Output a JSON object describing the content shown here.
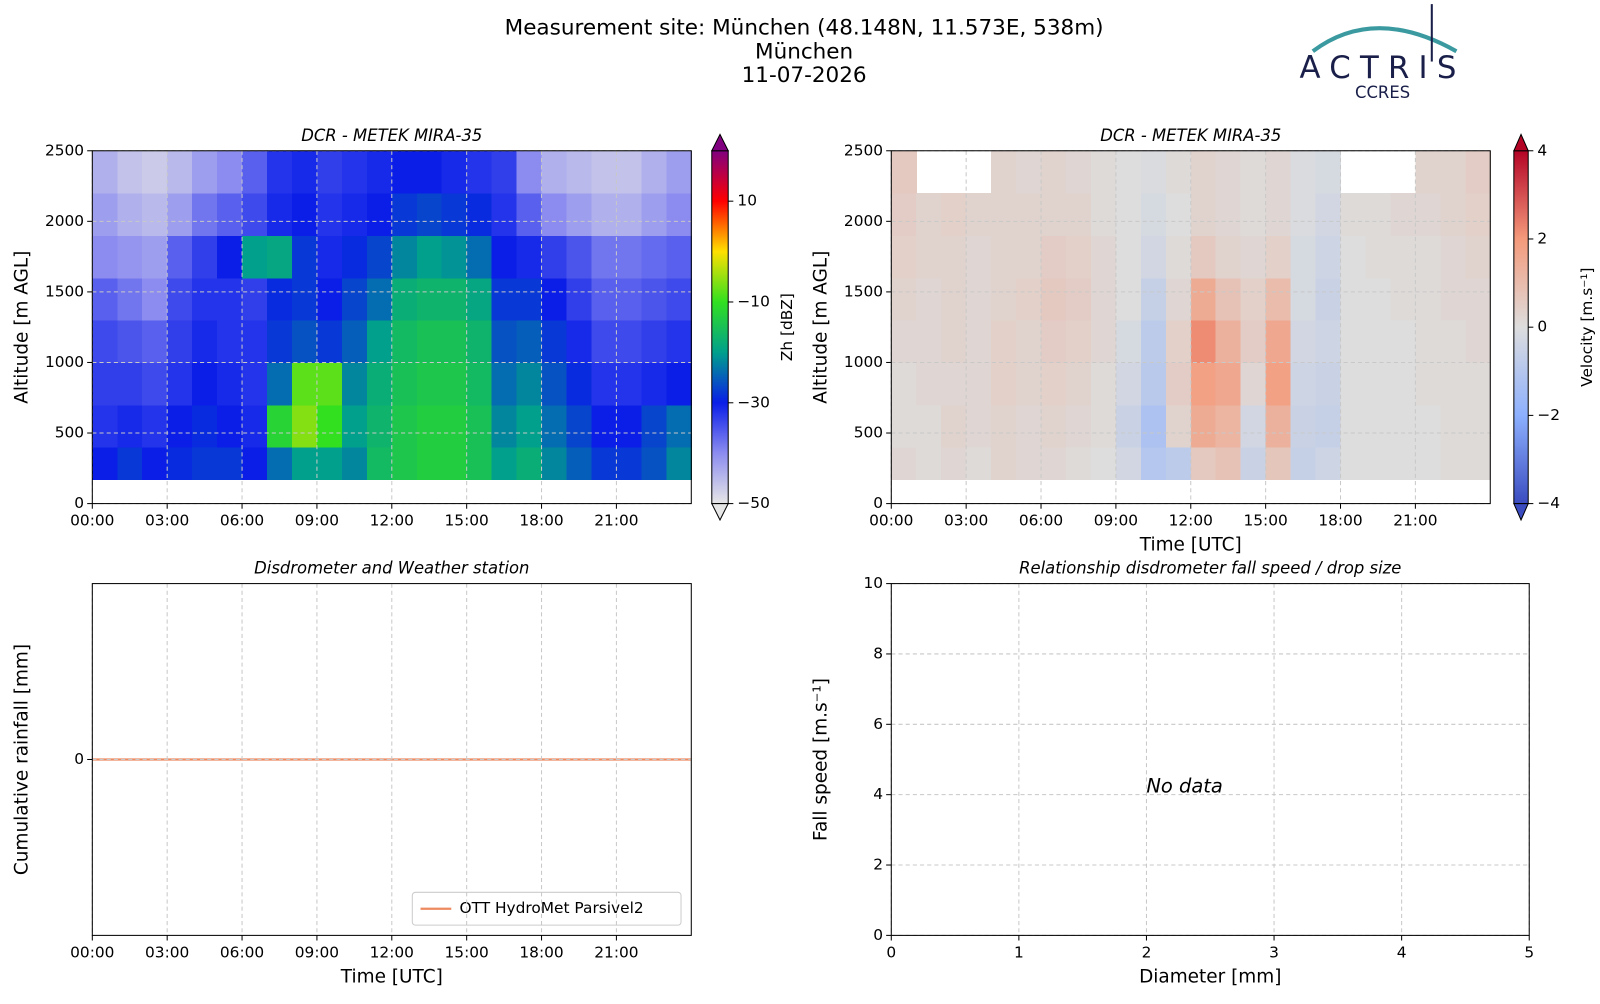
{
  "header": {
    "lines": [
      "Measurement site: München (48.148N, 11.573E, 538m)",
      "München",
      "11-07-2026"
    ]
  },
  "logo": {
    "name": "ACTRIS",
    "subtitle": "CCRES"
  },
  "chart_data": [
    {
      "type": "heatmap",
      "title": "DCR - METEK MIRA-35",
      "ylabel": "Altitude [m AGL]",
      "zlabel": "Zh [dBZ]",
      "x_edges": [
        0,
        1,
        2,
        3,
        4,
        5,
        6,
        7,
        8,
        9,
        10,
        11,
        12,
        13,
        14,
        15,
        16,
        17,
        18,
        19,
        20,
        21,
        22,
        23,
        24
      ],
      "y_edges": [
        170,
        400,
        700,
        1000,
        1300,
        1600,
        1900,
        2200,
        2500
      ],
      "z": [
        [
          -30,
          -28,
          -30,
          -29,
          -28,
          -28,
          -30,
          -24,
          -20,
          -20,
          -22,
          -16,
          -14,
          -13,
          -13,
          -15,
          -20,
          -18,
          -22,
          -25,
          -28,
          -28,
          -26,
          -22
        ],
        [
          -32,
          -31,
          -32,
          -30,
          -29,
          -30,
          -31,
          -12,
          -6,
          -10,
          -20,
          -17,
          -14,
          -13,
          -13,
          -15,
          -22,
          -20,
          -24,
          -27,
          -30,
          -30,
          -27,
          -24
        ],
        [
          -33,
          -33,
          -34,
          -32,
          -30,
          -31,
          -32,
          -24,
          -8,
          -8,
          -22,
          -18,
          -15,
          -14,
          -14,
          -16,
          -24,
          -22,
          -26,
          -29,
          -32,
          -32,
          -31,
          -30
        ],
        [
          -34,
          -35,
          -36,
          -33,
          -31,
          -32,
          -32,
          -28,
          -26,
          -28,
          -25,
          -20,
          -16,
          -15,
          -15,
          -17,
          -26,
          -25,
          -28,
          -31,
          -34,
          -34,
          -33,
          -32
        ],
        [
          -36,
          -38,
          -40,
          -34,
          -32,
          -32,
          -33,
          -29,
          -28,
          -30,
          -27,
          -24,
          -18,
          -17,
          -17,
          -19,
          -28,
          -28,
          -30,
          -33,
          -36,
          -36,
          -35,
          -34
        ],
        [
          -40,
          -41,
          -42,
          -36,
          -33,
          -30,
          -20,
          -19,
          -28,
          -31,
          -29,
          -27,
          -22,
          -20,
          -21,
          -24,
          -30,
          -31,
          -33,
          -35,
          -38,
          -38,
          -37,
          -36
        ],
        [
          -42,
          -44,
          -45,
          -42,
          -38,
          -36,
          -34,
          -31,
          -30,
          -32,
          -31,
          -30,
          -28,
          -27,
          -28,
          -29,
          -32,
          -36,
          -40,
          -42,
          -44,
          -44,
          -42,
          -40
        ],
        [
          -44,
          -46,
          -47,
          -45,
          -42,
          -40,
          -36,
          -32,
          -31,
          -33,
          -32,
          -31,
          -30,
          -30,
          -31,
          -32,
          -33,
          -40,
          -44,
          -45,
          -46,
          -46,
          -44,
          -42
        ]
      ],
      "colors": [
        "#e6e6e6",
        "#8c8cf0",
        "#0a1ee8",
        "#00a08c",
        "#32e020",
        "#ffe000",
        "#ff0000",
        "#800080"
      ],
      "zlim": [
        -50,
        20
      ],
      "zticks": [
        {
          "value": -50,
          "label": "−50"
        },
        {
          "value": -30,
          "label": "−30"
        },
        {
          "value": -10,
          "label": "−10"
        },
        10
      ],
      "extend": "both",
      "xlim": [
        0,
        24
      ],
      "xticks": [
        {
          "value": 0,
          "label": "00:00"
        },
        {
          "value": 3,
          "label": "03:00"
        },
        {
          "value": 6,
          "label": "06:00"
        },
        {
          "value": 9,
          "label": "09:00"
        },
        {
          "value": 12,
          "label": "12:00"
        },
        {
          "value": 15,
          "label": "15:00"
        },
        {
          "value": 18,
          "label": "18:00"
        },
        {
          "value": 21,
          "label": "21:00"
        }
      ],
      "ylim": [
        0,
        2500
      ],
      "yticks": [
        0,
        500,
        1000,
        1500,
        2000,
        2500
      ],
      "grid": true
    },
    {
      "type": "heatmap",
      "title": "DCR - METEK MIRA-35",
      "xlabel": "Time [UTC]",
      "ylabel": "Altitude [m AGL]",
      "zlabel": "Velocity [m.s⁻¹]",
      "x_edges": [
        0,
        1,
        2,
        3,
        4,
        5,
        6,
        7,
        8,
        9,
        10,
        11,
        12,
        13,
        14,
        15,
        16,
        17,
        18,
        19,
        20,
        21,
        22,
        23,
        24
      ],
      "y_edges": [
        170,
        400,
        700,
        1000,
        1300,
        1600,
        1900,
        2200,
        2500
      ],
      "z": [
        [
          0.2,
          0.1,
          0.2,
          0.1,
          0.3,
          0.2,
          0.2,
          0.1,
          0,
          -0.3,
          -1,
          -0.8,
          0.6,
          0.8,
          -0.5,
          0.7,
          -0.6,
          -0.4,
          0,
          0,
          0,
          0,
          0.1,
          0.1
        ],
        [
          0.1,
          0.1,
          0.3,
          0.2,
          0.3,
          0.2,
          0.3,
          0.2,
          0.1,
          -0.5,
          -1.2,
          0.3,
          1.5,
          1.2,
          -0.3,
          1.3,
          -0.5,
          -0.6,
          0,
          0,
          0,
          0,
          0.1,
          0.1
        ],
        [
          0.1,
          0.2,
          0.2,
          0.2,
          0.4,
          0.3,
          0.4,
          0.3,
          0.1,
          -0.3,
          -0.9,
          0.5,
          1.8,
          1.6,
          0.2,
          1.8,
          -0.4,
          -0.5,
          0,
          0,
          0,
          0.1,
          0.1,
          0.1
        ],
        [
          0.2,
          0.2,
          0.3,
          0.2,
          0.4,
          0.3,
          0.5,
          0.4,
          0.2,
          -0.2,
          -0.8,
          0.4,
          2.2,
          1.3,
          0.5,
          1.6,
          -0.3,
          -0.4,
          0,
          0,
          0,
          0.1,
          0.1,
          0.2
        ],
        [
          0.3,
          0.2,
          0.3,
          0.2,
          0.3,
          0.4,
          0.6,
          0.5,
          0.2,
          0,
          -0.6,
          0.2,
          1.5,
          0.8,
          0.4,
          1,
          -0.2,
          -0.5,
          0,
          0,
          0.1,
          0.1,
          0.2,
          0.2
        ],
        [
          0.4,
          0.3,
          0.3,
          0.2,
          0.3,
          0.3,
          0.5,
          0.4,
          0.2,
          0,
          -0.3,
          0.1,
          0.6,
          0.3,
          0.2,
          0.4,
          -0.2,
          -0.4,
          0,
          0.1,
          0.1,
          0.1,
          0.2,
          0.3
        ],
        [
          0.5,
          0.3,
          0.4,
          0.3,
          0.3,
          0.3,
          0.3,
          0.3,
          0.1,
          0,
          -0.2,
          0,
          0.3,
          0.2,
          0.1,
          0.2,
          -0.1,
          -0.3,
          0.1,
          0.1,
          0.2,
          0.2,
          0.3,
          0.4
        ],
        [
          0.6,
          null,
          null,
          null,
          0.3,
          0.2,
          0.3,
          0.2,
          0.1,
          0,
          -0.1,
          0.1,
          0.3,
          0.2,
          0.1,
          0.2,
          -0.1,
          -0.2,
          null,
          null,
          null,
          0.3,
          0.3,
          0.5
        ]
      ],
      "colors": [
        "#3b4cc0",
        "#8db0fe",
        "#dddddd",
        "#f49a7b",
        "#b40426"
      ],
      "zlim": [
        -4,
        4
      ],
      "zticks": [
        {
          "value": -4,
          "label": "−4"
        },
        {
          "value": -2,
          "label": "−2"
        },
        0,
        2,
        4
      ],
      "extend": "both",
      "xlim": [
        0,
        24
      ],
      "xticks": [
        {
          "value": 0,
          "label": "00:00"
        },
        {
          "value": 3,
          "label": "03:00"
        },
        {
          "value": 6,
          "label": "06:00"
        },
        {
          "value": 9,
          "label": "09:00"
        },
        {
          "value": 12,
          "label": "12:00"
        },
        {
          "value": 15,
          "label": "15:00"
        },
        {
          "value": 18,
          "label": "18:00"
        },
        {
          "value": 21,
          "label": "21:00"
        }
      ],
      "ylim": [
        0,
        2500
      ],
      "yticks": [
        0,
        500,
        1000,
        1500,
        2000,
        2500
      ],
      "grid": true
    },
    {
      "type": "line",
      "title": "Disdrometer and Weather station",
      "xlabel": "Time [UTC]",
      "ylabel": "Cumulative rainfall [mm]",
      "x": [
        0,
        24
      ],
      "series": [
        {
          "name": "OTT HydroMet Parsivel2",
          "color": "#ee8a60",
          "values": [
            0,
            0
          ]
        }
      ],
      "xlim": [
        0,
        24
      ],
      "xticks": [
        {
          "value": 0,
          "label": "00:00"
        },
        {
          "value": 3,
          "label": "03:00"
        },
        {
          "value": 6,
          "label": "06:00"
        },
        {
          "value": 9,
          "label": "09:00"
        },
        {
          "value": 12,
          "label": "12:00"
        },
        {
          "value": 15,
          "label": "15:00"
        },
        {
          "value": 18,
          "label": "18:00"
        },
        {
          "value": 21,
          "label": "21:00"
        }
      ],
      "ylim": [
        -1,
        1
      ],
      "yticks": [
        0
      ],
      "grid": true,
      "legend": "lower right"
    },
    {
      "type": "scatter",
      "title": "Relationship disdrometer fall speed / drop size",
      "xlabel": "Diameter [mm]",
      "ylabel": "Fall speed [m.s⁻¹]",
      "annotation": "No data",
      "series": [],
      "xlim": [
        0,
        5
      ],
      "xticks": [
        0,
        1,
        2,
        3,
        4,
        5
      ],
      "ylim": [
        0,
        10
      ],
      "yticks": [
        0,
        2,
        4,
        6,
        8,
        10
      ],
      "grid": true
    }
  ]
}
